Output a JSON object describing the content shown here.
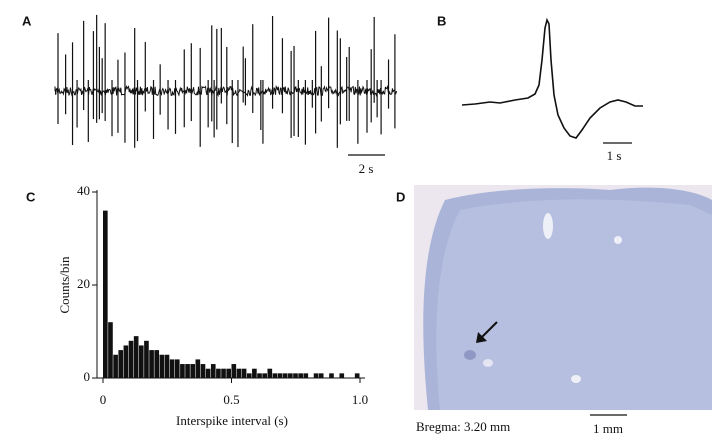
{
  "figure": {
    "panels": [
      "A",
      "B",
      "C",
      "D"
    ],
    "scale_a": "2 s",
    "scale_b": "1 s",
    "caption_d": "Bregma: 3.20 mm",
    "scale_d": "1 mm"
  },
  "chart_data": {
    "type": "histogram",
    "ylabel": "Counts/bin",
    "xlabel": "Interspike interval (s)",
    "bins": [
      0,
      0.02,
      0.04,
      0.06,
      0.08,
      0.1,
      0.12,
      0.14,
      0.16,
      0.18,
      0.2,
      0.22,
      0.24,
      0.26,
      0.28,
      0.3,
      0.32,
      0.34,
      0.36,
      0.38,
      0.4,
      0.42,
      0.44,
      0.46,
      0.48,
      0.5,
      0.52,
      0.54,
      0.56,
      0.58,
      0.6,
      0.62,
      0.64,
      0.66,
      0.68,
      0.7,
      0.72,
      0.74,
      0.76,
      0.78,
      0.8,
      0.82,
      0.84,
      0.86,
      0.88,
      0.9,
      0.92,
      0.94,
      0.96,
      0.98,
      1.0
    ],
    "counts": [
      36,
      12,
      5,
      6,
      7,
      8,
      9,
      7,
      8,
      6,
      6,
      5,
      5,
      4,
      4,
      3,
      3,
      3,
      4,
      3,
      2,
      3,
      2,
      2,
      2,
      3,
      2,
      2,
      1,
      2,
      1,
      1,
      2,
      1,
      1,
      1,
      1,
      1,
      1,
      1,
      0,
      1,
      1,
      0,
      1,
      0,
      1,
      0,
      0,
      1
    ],
    "color": "#111111",
    "xlim": [
      0,
      1
    ],
    "xticks": [
      0,
      0.5,
      {
        "value": 1,
        "label": "1.0"
      }
    ],
    "ylim": [
      0,
      40
    ],
    "yticks": [
      0,
      20,
      40
    ]
  }
}
